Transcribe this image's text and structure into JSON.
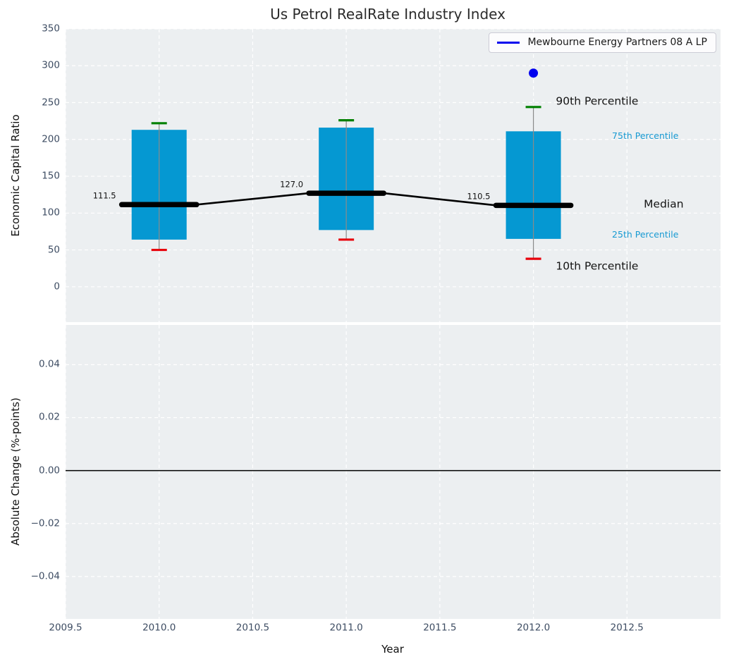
{
  "title": "Us Petrol RealRate Industry Index",
  "chart_data": [
    {
      "type": "boxplot-timeseries",
      "title": "Us Petrol RealRate Industry Index",
      "ylabel": "Economic Capital Ratio",
      "xlim": [
        2009.5,
        2013.0
      ],
      "ylim": [
        -48,
        350
      ],
      "grid": "white-dashed",
      "background": "#eceff1",
      "xtick_values": [
        2009.5,
        2010.0,
        2010.5,
        2011.0,
        2011.5,
        2012.0,
        2012.5
      ],
      "xtick_labels": [
        "2009.5",
        "2010.0",
        "2010.5",
        "2011.0",
        "2011.5",
        "2012.0",
        "2012.5"
      ],
      "ytick_values": [
        0,
        50,
        100,
        150,
        200,
        250,
        300,
        350
      ],
      "ytick_labels": [
        "0",
        "50",
        "100",
        "150",
        "200",
        "250",
        "300",
        "350"
      ],
      "boxes": [
        {
          "year": 2010,
          "p10": 50,
          "p25": 64,
          "median": 111.5,
          "p75": 213,
          "p90": 222,
          "median_label": "111.5"
        },
        {
          "year": 2011,
          "p10": 64,
          "p25": 77,
          "median": 127.0,
          "p75": 216,
          "p90": 226,
          "median_label": "127.0"
        },
        {
          "year": 2012,
          "p10": 38,
          "p25": 65,
          "median": 110.5,
          "p75": 211,
          "p90": 244,
          "median_label": "110.5"
        }
      ],
      "company_points": [
        {
          "year": 2012,
          "value": 290
        }
      ],
      "annotations": [
        {
          "label": "90th Percentile",
          "x": 2012.12,
          "y": 251,
          "style": "large-black"
        },
        {
          "label": "75th Percentile",
          "x": 2012.42,
          "y": 205,
          "style": "small-blue"
        },
        {
          "label": "Median",
          "x": 2012.59,
          "y": 112,
          "style": "large-black"
        },
        {
          "label": "25th Percentile",
          "x": 2012.42,
          "y": 71,
          "style": "small-blue"
        },
        {
          "label": "10th Percentile",
          "x": 2012.12,
          "y": 28,
          "style": "large-black"
        }
      ],
      "legend": {
        "label": "Mewbourne Energy Partners 08 A LP",
        "color": "#0000ee",
        "position": "upper right"
      },
      "colors": {
        "box": "#0598d2",
        "median": "#000000",
        "whisker": "#8a8a8a",
        "cap_high": "#008000",
        "cap_low": "#e8000b",
        "company": "#0000ee",
        "percentile_text": "#189ad2",
        "background": "#eceff1",
        "grid": "#ffffff"
      }
    },
    {
      "type": "line",
      "ylabel": "Absolute Change (%-points)",
      "xlabel": "Year",
      "xlim": [
        2009.5,
        2013.0
      ],
      "ylim": [
        -0.056,
        0.055
      ],
      "grid": "white-dashed",
      "background": "#eceff1",
      "ytick_values": [
        0.04,
        0.02,
        0.0,
        -0.02,
        -0.04
      ],
      "ytick_labels": [
        "0.04",
        "0.02",
        "0.00",
        "−0.02",
        "−0.04"
      ],
      "zero_line": true,
      "series": []
    }
  ]
}
